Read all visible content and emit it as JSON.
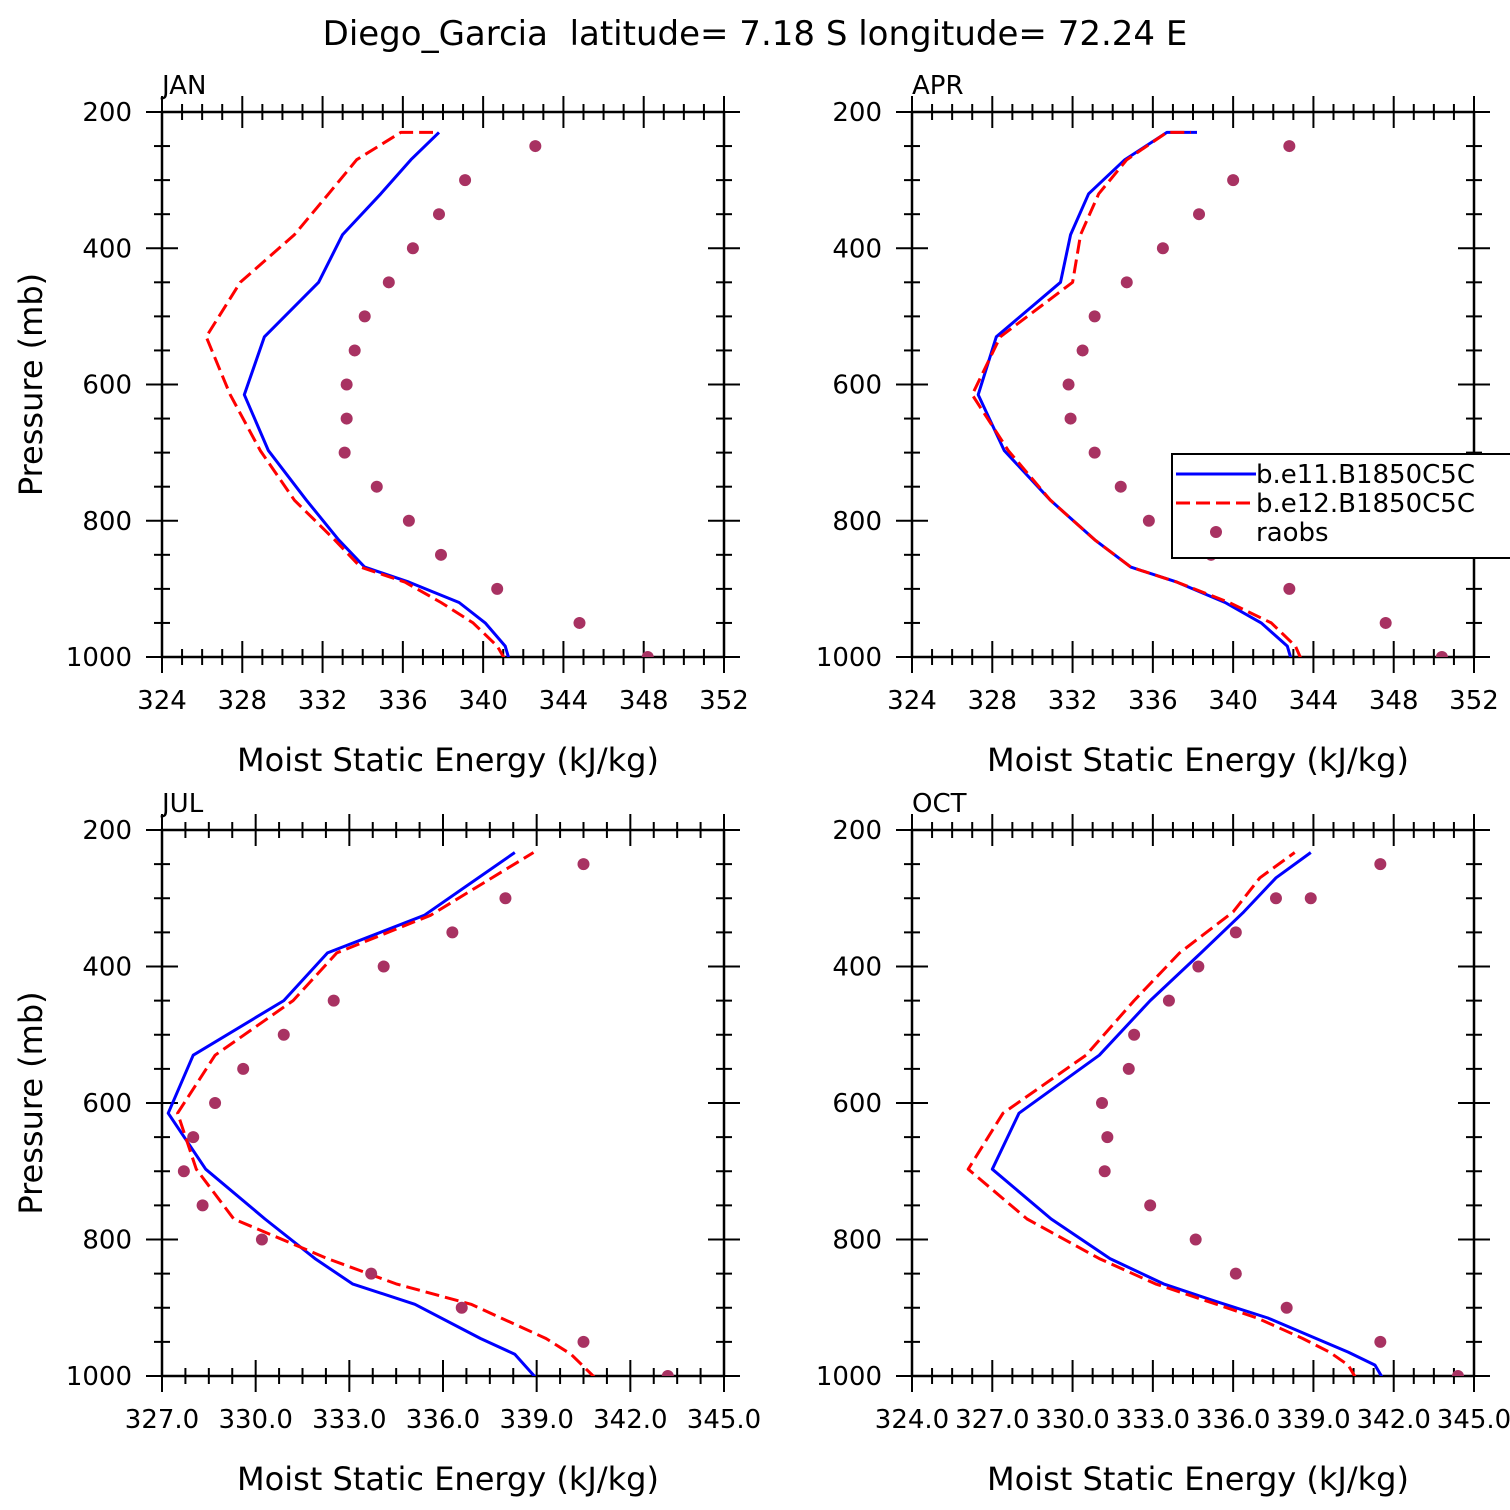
{
  "figure": {
    "title": "Diego_Garcia  latitude= 7.18 S longitude= 72.24 E"
  },
  "legend": {
    "placement": "right of APR panel",
    "entries": [
      {
        "label": "b.e11.B1850C5C",
        "style": "solid",
        "color": "#0000ff"
      },
      {
        "label": "b.e12.B1850C5C",
        "style": "dashed",
        "color": "#ff0000"
      },
      {
        "label": "raobs",
        "style": "dots",
        "color": "#a83262"
      }
    ]
  },
  "chart_data": [
    {
      "type": "line",
      "title": "JAN",
      "xlabel": "Moist Static Energy (kJ/kg)",
      "ylabel": "Pressure (mb)",
      "xlim": [
        324,
        352
      ],
      "xticks": [
        324,
        328,
        332,
        336,
        340,
        344,
        348,
        352
      ],
      "xtick_labels": [
        "324",
        "328",
        "332",
        "336",
        "340",
        "344",
        "348",
        "352"
      ],
      "ylim": [
        1000,
        200
      ],
      "yticks": [
        200,
        400,
        600,
        800,
        1000
      ],
      "grid": false,
      "series": [
        {
          "name": "b.e11.B1850C5C",
          "color": "#0000ff",
          "dash": "solid",
          "x": [
            341.3,
            341.1,
            340.1,
            338.8,
            336.3,
            334.1,
            332.8,
            331.2,
            329.3,
            328.1,
            329.1,
            331.8,
            333.0,
            334.9,
            336.4,
            337.8,
            337.8
          ],
          "y": [
            1004,
            984,
            950,
            920,
            890,
            868,
            828,
            770,
            697,
            615,
            530,
            450,
            380,
            320,
            270,
            230,
            230
          ]
        },
        {
          "name": "b.e12.B1850C5C",
          "color": "#ff0000",
          "dash": "dashed",
          "x": [
            341.1,
            340.7,
            339.5,
            337.9,
            336.1,
            333.9,
            332.6,
            330.6,
            328.9,
            327.4,
            326.2,
            327.9,
            330.6,
            332.3,
            333.7,
            335.9,
            337.5
          ],
          "y": [
            1004,
            984,
            950,
            920,
            890,
            868,
            828,
            770,
            697,
            615,
            530,
            450,
            380,
            320,
            270,
            230,
            230
          ]
        },
        {
          "name": "raobs",
          "color": "#a83262",
          "dash": "none",
          "x": [
            348.2,
            344.8,
            340.7,
            337.9,
            336.3,
            334.7,
            333.1,
            333.2,
            333.2,
            333.6,
            334.1,
            335.3,
            336.5,
            337.8,
            339.1,
            342.6
          ],
          "y": [
            1000,
            950,
            900,
            850,
            800,
            750,
            700,
            650,
            600,
            550,
            500,
            450,
            400,
            350,
            300,
            250
          ]
        }
      ]
    },
    {
      "type": "line",
      "title": "APR",
      "xlabel": "Moist Static Energy (kJ/kg)",
      "ylabel": "",
      "xlim": [
        324,
        352
      ],
      "xticks": [
        324,
        328,
        332,
        336,
        340,
        344,
        348,
        352
      ],
      "xtick_labels": [
        "324",
        "328",
        "332",
        "336",
        "340",
        "344",
        "348",
        "352"
      ],
      "ylim": [
        1000,
        200
      ],
      "yticks": [
        200,
        400,
        600,
        800,
        1000
      ],
      "grid": false,
      "series": [
        {
          "name": "b.e11.B1850C5C",
          "color": "#0000ff",
          "dash": "solid",
          "x": [
            342.9,
            342.7,
            341.4,
            339.6,
            337.2,
            334.9,
            333.1,
            330.9,
            328.6,
            327.3,
            328.2,
            331.4,
            331.9,
            332.8,
            334.6,
            336.7,
            338.2
          ],
          "y": [
            1004,
            984,
            950,
            920,
            890,
            868,
            828,
            770,
            697,
            615,
            530,
            450,
            380,
            320,
            270,
            230,
            230
          ]
        },
        {
          "name": "b.e12.B1850C5C",
          "color": "#ff0000",
          "dash": "dashed",
          "x": [
            343.4,
            343.1,
            341.9,
            339.8,
            337.2,
            334.9,
            333.1,
            330.9,
            328.8,
            327.0,
            328.4,
            332.0,
            332.4,
            333.3,
            334.7,
            336.7,
            337.9
          ],
          "y": [
            1004,
            984,
            950,
            920,
            890,
            868,
            828,
            770,
            697,
            615,
            530,
            450,
            380,
            320,
            270,
            230,
            230
          ]
        },
        {
          "name": "raobs",
          "color": "#a83262",
          "dash": "none",
          "x": [
            350.4,
            347.6,
            342.8,
            338.9,
            335.8,
            334.4,
            333.1,
            331.9,
            331.8,
            332.5,
            333.1,
            334.7,
            336.5,
            338.3,
            340.0,
            342.8
          ],
          "y": [
            1000,
            950,
            900,
            850,
            800,
            750,
            700,
            650,
            600,
            550,
            500,
            450,
            400,
            350,
            300,
            250
          ]
        }
      ]
    },
    {
      "type": "line",
      "title": "JUL",
      "xlabel": "Moist Static Energy (kJ/kg)",
      "ylabel": "Pressure (mb)",
      "xlim": [
        327,
        345
      ],
      "xticks": [
        327,
        330,
        333,
        336,
        339,
        342,
        345
      ],
      "xtick_labels": [
        "327.0",
        "330.0",
        "333.0",
        "336.0",
        "339.0",
        "342.0",
        "345.0"
      ],
      "ylim": [
        1000,
        200
      ],
      "yticks": [
        200,
        400,
        600,
        800,
        1000
      ],
      "grid": false,
      "series": [
        {
          "name": "b.e11.B1850C5C",
          "color": "#0000ff",
          "dash": "solid",
          "x": [
            339.0,
            338.3,
            337.2,
            335.1,
            333.1,
            331.9,
            330.3,
            328.4,
            327.2,
            328.0,
            330.9,
            332.3,
            335.4,
            338.3
          ],
          "y": [
            1004,
            968,
            945,
            895,
            865,
            828,
            770,
            697,
            615,
            530,
            450,
            380,
            325,
            233
          ]
        },
        {
          "name": "b.e12.B1850C5C",
          "color": "#ff0000",
          "dash": "dashed",
          "x": [
            340.9,
            340.1,
            339.3,
            336.9,
            334.5,
            332.3,
            329.3,
            328.1,
            327.5,
            328.7,
            331.2,
            332.6,
            335.6,
            338.9
          ],
          "y": [
            1004,
            968,
            945,
            895,
            865,
            828,
            770,
            697,
            615,
            530,
            450,
            380,
            325,
            233
          ]
        },
        {
          "name": "raobs",
          "color": "#a83262",
          "dash": "none",
          "x": [
            343.2,
            340.5,
            336.6,
            333.7,
            330.2,
            328.3,
            327.7,
            328.0,
            328.7,
            329.6,
            330.9,
            332.5,
            334.1,
            336.3,
            338.0,
            340.5
          ],
          "y": [
            1000,
            950,
            900,
            850,
            800,
            750,
            700,
            650,
            600,
            550,
            500,
            450,
            400,
            350,
            300,
            250
          ]
        }
      ]
    },
    {
      "type": "line",
      "title": "OCT",
      "xlabel": "Moist Static Energy (kJ/kg)",
      "ylabel": "",
      "xlim": [
        324,
        345
      ],
      "xticks": [
        324,
        327,
        330,
        333,
        336,
        339,
        342,
        345
      ],
      "xtick_labels": [
        "324.0",
        "327.0",
        "330.0",
        "333.0",
        "336.0",
        "339.0",
        "342.0",
        "345.0"
      ],
      "ylim": [
        1000,
        200
      ],
      "yticks": [
        200,
        400,
        600,
        800,
        1000
      ],
      "grid": false,
      "series": [
        {
          "name": "b.e11.B1850C5C",
          "color": "#0000ff",
          "dash": "solid",
          "x": [
            341.6,
            341.3,
            340.3,
            339.1,
            337.3,
            335.3,
            333.4,
            331.4,
            329.2,
            327.0,
            328.0,
            331.0,
            332.9,
            334.8,
            336.4,
            337.6,
            338.9
          ],
          "y": [
            1004,
            984,
            965,
            945,
            915,
            890,
            865,
            828,
            770,
            697,
            615,
            530,
            450,
            380,
            320,
            270,
            233
          ]
        },
        {
          "name": "b.e12.B1850C5C",
          "color": "#ff0000",
          "dash": "dashed",
          "x": [
            340.6,
            340.3,
            339.6,
            338.6,
            336.9,
            335.0,
            333.1,
            331.0,
            328.3,
            326.1,
            327.4,
            330.5,
            332.3,
            334.0,
            336.0,
            337.0,
            338.3
          ],
          "y": [
            1004,
            984,
            965,
            945,
            915,
            890,
            865,
            828,
            770,
            697,
            615,
            530,
            450,
            380,
            320,
            270,
            233
          ]
        },
        {
          "name": "raobs",
          "color": "#a83262",
          "dash": "none",
          "x": [
            344.4,
            341.5,
            338.0,
            336.1,
            334.6,
            332.9,
            331.2,
            331.3,
            331.1,
            332.1,
            332.3,
            333.6,
            334.7,
            336.1,
            337.6,
            338.9,
            341.5
          ],
          "y": [
            1000,
            950,
            900,
            850,
            800,
            750,
            700,
            650,
            600,
            550,
            500,
            450,
            400,
            350,
            300,
            300,
            250
          ]
        }
      ]
    }
  ]
}
